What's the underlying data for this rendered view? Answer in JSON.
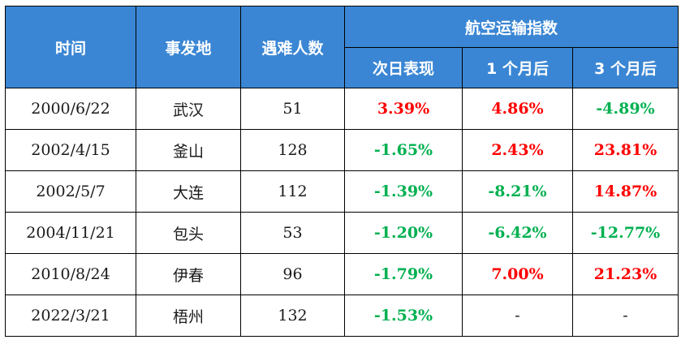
{
  "table": {
    "headers": {
      "time": "时间",
      "location": "事发地",
      "victims": "遇难人数",
      "index_group": "航空运输指数",
      "next_day": "次日表现",
      "one_month": "1 个月后",
      "three_month": "3 个月后"
    },
    "colors": {
      "header_bg": "#3a86d4",
      "positive": "#ff0000",
      "negative": "#00b050"
    },
    "rows": [
      {
        "date": "2000/6/22",
        "place": "武汉",
        "victims": "51",
        "next_day": "3.39%",
        "one_month": "4.86%",
        "three_month": "-4.89%"
      },
      {
        "date": "2002/4/15",
        "place": "釜山",
        "victims": "128",
        "next_day": "-1.65%",
        "one_month": "2.43%",
        "three_month": "23.81%"
      },
      {
        "date": "2002/5/7",
        "place": "大连",
        "victims": "112",
        "next_day": "-1.39%",
        "one_month": "-8.21%",
        "three_month": "14.87%"
      },
      {
        "date": "2004/11/21",
        "place": "包头",
        "victims": "53",
        "next_day": "-1.20%",
        "one_month": "-6.42%",
        "three_month": "-12.77%"
      },
      {
        "date": "2010/8/24",
        "place": "伊春",
        "victims": "96",
        "next_day": "-1.79%",
        "one_month": "7.00%",
        "three_month": "21.23%"
      },
      {
        "date": "2022/3/21",
        "place": "梧州",
        "victims": "132",
        "next_day": "-1.53%",
        "one_month": "-",
        "three_month": "-"
      }
    ]
  }
}
